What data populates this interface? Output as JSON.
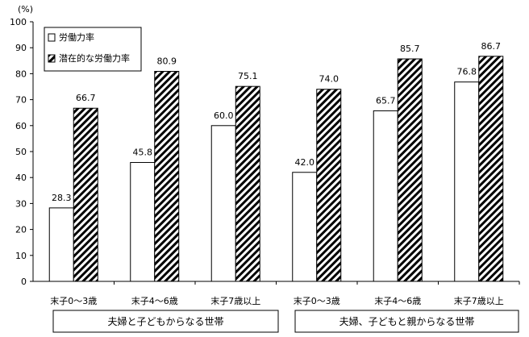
{
  "chart_data": {
    "type": "bar",
    "unit_label": "(%)",
    "ylim": [
      0,
      100
    ],
    "yticks": [
      0,
      10,
      20,
      30,
      40,
      50,
      60,
      70,
      80,
      90,
      100
    ],
    "categories": [
      "末子0～3歳",
      "末子4～6歳",
      "末子7歳以上",
      "末子0～3歳",
      "末子4～6歳",
      "末子7歳以上"
    ],
    "groups": [
      "夫婦と子どもからなる世帯",
      "夫婦、子どもと親からなる世帯"
    ],
    "series": [
      {
        "name": "労働力率",
        "pattern": "plain",
        "values": [
          28.3,
          45.8,
          60.0,
          42.0,
          65.7,
          76.8
        ]
      },
      {
        "name": "潜在的な労働力率",
        "pattern": "hatched",
        "values": [
          66.7,
          80.9,
          75.1,
          74.0,
          85.7,
          86.7
        ]
      }
    ],
    "legend_position": "top-left",
    "grid": false
  }
}
